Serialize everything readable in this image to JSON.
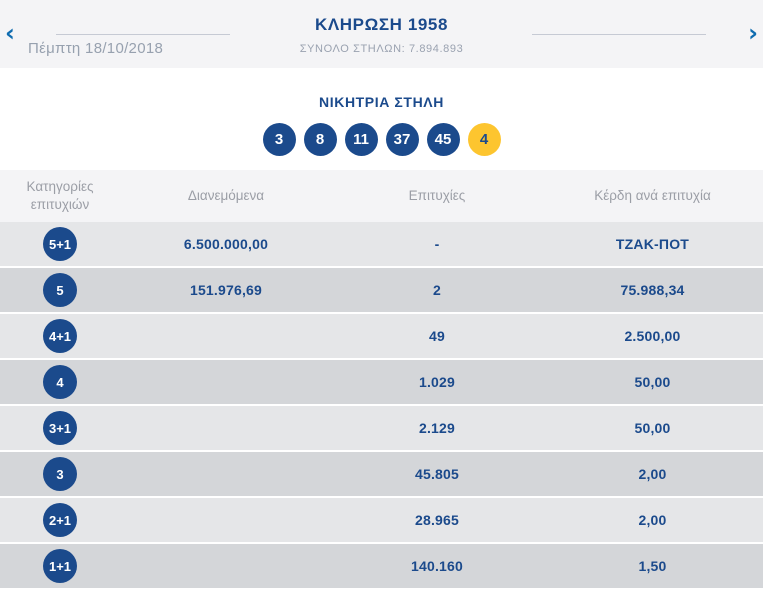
{
  "header": {
    "title": "ΚΛΗΡΩΣΗ 1958",
    "subtitle": "ΣΥΝΟΛΟ ΣΤΗΛΩΝ: 7.894.893",
    "date": "Πέμπτη 18/10/2018",
    "prev_label": "‹",
    "next_label": "›"
  },
  "winning_column": {
    "title": "ΝΙΚΗΤΡΙΑ ΣΤΗΛΗ",
    "numbers": [
      "3",
      "8",
      "11",
      "37",
      "45"
    ],
    "bonus_number": "4"
  },
  "results_table": {
    "columns": [
      "Κατηγορίες επιτυχιών",
      "Διανεμόμενα",
      "Επιτυχίες",
      "Κέρδη ανά επιτυχία"
    ],
    "rows": [
      {
        "category": "5+1",
        "distributed": "6.500.000,00",
        "wins": "-",
        "prize": "ΤΖΑΚ-ΠΟΤ"
      },
      {
        "category": "5",
        "distributed": "151.976,69",
        "wins": "2",
        "prize": "75.988,34"
      },
      {
        "category": "4+1",
        "distributed": "",
        "wins": "49",
        "prize": "2.500,00"
      },
      {
        "category": "4",
        "distributed": "",
        "wins": "1.029",
        "prize": "50,00"
      },
      {
        "category": "3+1",
        "distributed": "",
        "wins": "2.129",
        "prize": "50,00"
      },
      {
        "category": "3",
        "distributed": "",
        "wins": "45.805",
        "prize": "2,00"
      },
      {
        "category": "2+1",
        "distributed": "",
        "wins": "28.965",
        "prize": "2,00"
      },
      {
        "category": "1+1",
        "distributed": "",
        "wins": "140.160",
        "prize": "1,50"
      }
    ]
  },
  "colors": {
    "navy": "#1b4a8c",
    "bonus_yellow": "#fdc52f",
    "chevron_blue": "#0f6cb0",
    "row_light": "#e5e6e8",
    "row_dark": "#d4d6d9",
    "section_bg": "#f4f4f6",
    "muted_text": "#9aa2b0"
  }
}
